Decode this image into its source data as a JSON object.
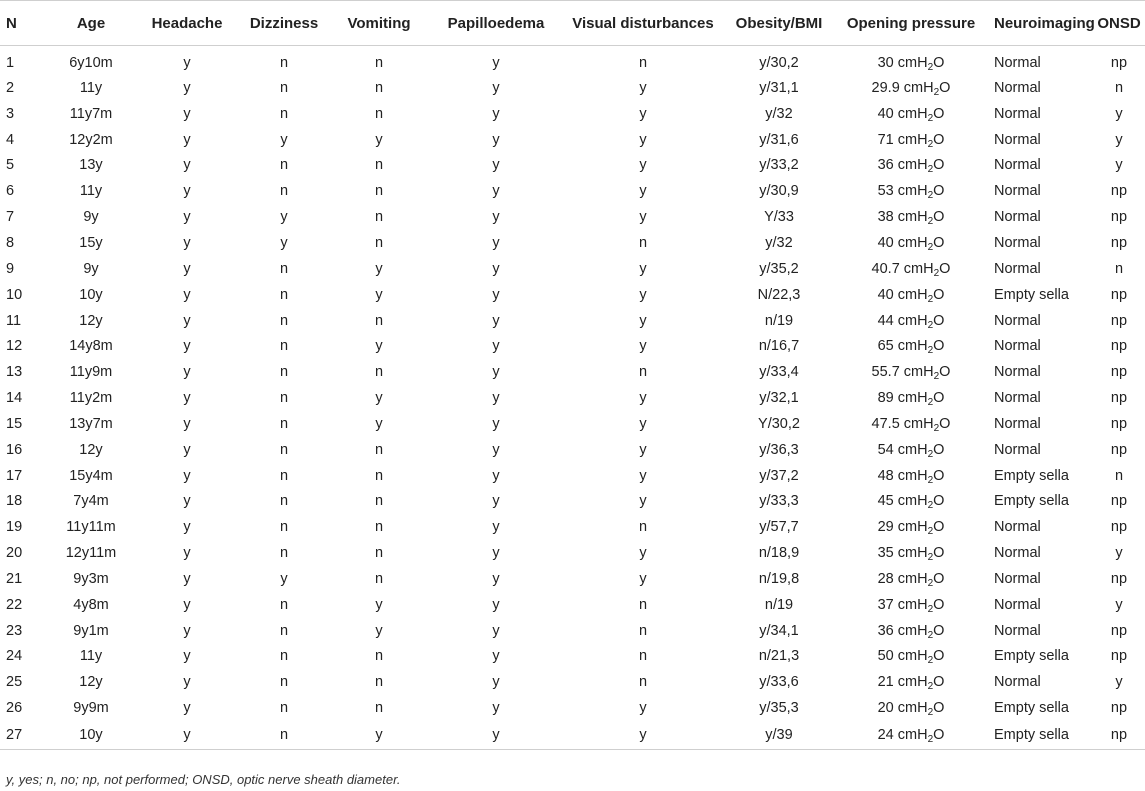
{
  "headers": [
    "N",
    "Age",
    "Headache",
    "Dizziness",
    "Vomiting",
    "Papilloedema",
    "Visual disturbances",
    "Obesity/BMI",
    "Opening pressure",
    "Neuroimaging",
    "ONSD"
  ],
  "pressure_unit": {
    "prefix": "cmH",
    "sub": "2",
    "suffix": "O"
  },
  "rows": [
    [
      "1",
      "6y10m",
      "y",
      "n",
      "n",
      "y",
      "n",
      "y/30,2",
      "30",
      "Normal",
      "np"
    ],
    [
      "2",
      "11y",
      "y",
      "n",
      "n",
      "y",
      "y",
      "y/31,1",
      "29.9",
      "Normal",
      "n"
    ],
    [
      "3",
      "11y7m",
      "y",
      "n",
      "n",
      "y",
      "y",
      "y/32",
      "40",
      "Normal",
      "y"
    ],
    [
      "4",
      "12y2m",
      "y",
      "y",
      "y",
      "y",
      "y",
      "y/31,6",
      "71",
      "Normal",
      "y"
    ],
    [
      "5",
      "13y",
      "y",
      "n",
      "n",
      "y",
      "y",
      "y/33,2",
      "36",
      "Normal",
      "y"
    ],
    [
      "6",
      "11y",
      "y",
      "n",
      "n",
      "y",
      "y",
      "y/30,9",
      "53",
      "Normal",
      "np"
    ],
    [
      "7",
      "9y",
      "y",
      "y",
      "n",
      "y",
      "y",
      "Y/33",
      "38",
      "Normal",
      "np"
    ],
    [
      "8",
      "15y",
      "y",
      "y",
      "n",
      "y",
      "n",
      "y/32",
      "40",
      "Normal",
      "np"
    ],
    [
      "9",
      "9y",
      "y",
      "n",
      "y",
      "y",
      "y",
      "y/35,2",
      "40.7",
      "Normal",
      "n"
    ],
    [
      "10",
      "10y",
      "y",
      "n",
      "y",
      "y",
      "y",
      "N/22,3",
      "40",
      "Empty sella",
      "np"
    ],
    [
      "11",
      "12y",
      "y",
      "n",
      "n",
      "y",
      "y",
      "n/19",
      "44",
      "Normal",
      "np"
    ],
    [
      "12",
      "14y8m",
      "y",
      "n",
      "y",
      "y",
      "y",
      "n/16,7",
      "65",
      "Normal",
      "np"
    ],
    [
      "13",
      "11y9m",
      "y",
      "n",
      "n",
      "y",
      "n",
      "y/33,4",
      "55.7",
      "Normal",
      "np"
    ],
    [
      "14",
      "11y2m",
      "y",
      "n",
      "y",
      "y",
      "y",
      "y/32,1",
      "89",
      "Normal",
      "np"
    ],
    [
      "15",
      "13y7m",
      "y",
      "n",
      "y",
      "y",
      "y",
      "Y/30,2",
      "47.5",
      "Normal",
      "np"
    ],
    [
      "16",
      "12y",
      "y",
      "n",
      "n",
      "y",
      "y",
      "y/36,3",
      "54",
      "Normal",
      "np"
    ],
    [
      "17",
      "15y4m",
      "y",
      "n",
      "n",
      "y",
      "y",
      "y/37,2",
      "48",
      "Empty sella",
      "n"
    ],
    [
      "18",
      "7y4m",
      "y",
      "n",
      "n",
      "y",
      "y",
      "y/33,3",
      "45",
      "Empty sella",
      "np"
    ],
    [
      "19",
      "11y11m",
      "y",
      "n",
      "n",
      "y",
      "n",
      "y/57,7",
      "29",
      "Normal",
      "np"
    ],
    [
      "20",
      "12y11m",
      "y",
      "n",
      "n",
      "y",
      "y",
      "n/18,9",
      "35",
      "Normal",
      "y"
    ],
    [
      "21",
      "9y3m",
      "y",
      "y",
      "n",
      "y",
      "y",
      "n/19,8",
      "28",
      "Normal",
      "np"
    ],
    [
      "22",
      "4y8m",
      "y",
      "n",
      "y",
      "y",
      "n",
      "n/19",
      "37",
      "Normal",
      "y"
    ],
    [
      "23",
      "9y1m",
      "y",
      "n",
      "y",
      "y",
      "n",
      "y/34,1",
      "36",
      "Normal",
      "np"
    ],
    [
      "24",
      "11y",
      "y",
      "n",
      "n",
      "y",
      "n",
      "n/21,3",
      "50",
      "Empty sella",
      "np"
    ],
    [
      "25",
      "12y",
      "y",
      "n",
      "n",
      "y",
      "n",
      "y/33,6",
      "21",
      "Normal",
      "y"
    ],
    [
      "26",
      "9y9m",
      "y",
      "n",
      "n",
      "y",
      "y",
      "y/35,3",
      "20",
      "Empty sella",
      "np"
    ],
    [
      "27",
      "10y",
      "y",
      "n",
      "y",
      "y",
      "y",
      "y/39",
      "24",
      "Empty sella",
      "np"
    ]
  ],
  "footnote": "y, yes; n, no; np, not performed; ONSD, optic nerve sheath diameter."
}
